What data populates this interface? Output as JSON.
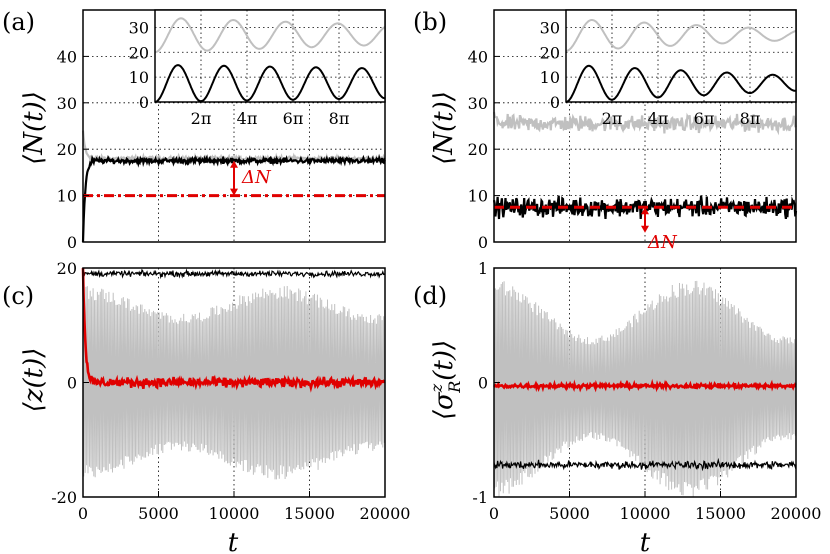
{
  "chart_data": [
    {
      "panel": "(a)",
      "type": "line",
      "ylabel": "⟨N(t)⟩",
      "xlim": [
        0,
        20000
      ],
      "ylim": [
        0,
        50
      ],
      "yticks": [
        "0",
        "10",
        "20",
        "30",
        "40"
      ],
      "grid": true,
      "series": [
        {
          "color": "#c0c0c0",
          "level": 18,
          "start": 24,
          "noise": 0.6
        },
        {
          "color": "#000000",
          "level": 17.5,
          "start": 0,
          "noise": 0.8
        },
        {
          "color": "#e00000",
          "level": 10,
          "style": "dash-dot"
        }
      ],
      "annotation": "ΔN",
      "inset": {
        "xticks": [
          "2π",
          "4π",
          "6π",
          "8π"
        ],
        "yticks": [
          "0",
          "10",
          "20",
          "30"
        ],
        "ylim": [
          0,
          37
        ],
        "series": [
          {
            "color": "#c0c0c0",
            "mean": 27,
            "amp_start": 7,
            "amp_end": 4
          },
          {
            "color": "#000000",
            "mean": 7.5,
            "amp_start": 7.5,
            "amp_end": 6
          }
        ]
      }
    },
    {
      "panel": "(b)",
      "type": "line",
      "ylabel": "⟨N(t)⟩",
      "xlim": [
        0,
        20000
      ],
      "ylim": [
        0,
        50
      ],
      "yticks": [
        "0",
        "10",
        "20",
        "30",
        "40"
      ],
      "grid": true,
      "series": [
        {
          "color": "#c0c0c0",
          "level": 25.5,
          "start": 28,
          "noise": 2.5
        },
        {
          "color": "#000000",
          "level": 7.5,
          "noise": 3.0
        },
        {
          "color": "#e00000",
          "level": 7.5,
          "style": "dashed"
        }
      ],
      "annotation": "ΔN",
      "inset": {
        "xticks": [
          "2π",
          "4π",
          "6π",
          "8π"
        ],
        "yticks": [
          "0",
          "10",
          "20",
          "30"
        ],
        "ylim": [
          0,
          37
        ],
        "series": [
          {
            "color": "#c0c0c0",
            "mean": 27,
            "amp_start": 6.5,
            "amp_end": 2
          },
          {
            "color": "#000000",
            "mean": 7.5,
            "amp_start": 7.5,
            "amp_end": 3
          }
        ]
      }
    },
    {
      "panel": "(c)",
      "type": "line",
      "ylabel": "⟨z(t)⟩",
      "xlabel": "t",
      "xlim": [
        0,
        20000
      ],
      "ylim": [
        -20,
        20
      ],
      "yticks": [
        "-20",
        "0",
        "20"
      ],
      "xticks": [
        "0",
        "5000",
        "10000",
        "15000",
        "20000"
      ],
      "grid": true,
      "series": [
        {
          "color": "#c0c0c0",
          "mean": 0,
          "amp_max": 17,
          "amp_min": 12
        },
        {
          "color": "#000000",
          "level": 19,
          "noise": 0.7
        },
        {
          "color": "#e00000",
          "level": 0,
          "start": 20,
          "noise": 1.2
        }
      ]
    },
    {
      "panel": "(d)",
      "type": "line",
      "ylabel": "⟨σ^z_R(t)⟩",
      "xlabel": "t",
      "xlim": [
        0,
        20000
      ],
      "ylim": [
        -1,
        1
      ],
      "yticks": [
        "-1",
        "0",
        "1"
      ],
      "xticks": [
        "0",
        "5000",
        "10000",
        "15000",
        "20000"
      ],
      "grid": true,
      "series": [
        {
          "color": "#c0c0c0",
          "mean": -0.05,
          "amp_max": 0.95,
          "amp_min": 0.45
        },
        {
          "color": "#000000",
          "level": -0.72,
          "noise": 0.05
        },
        {
          "color": "#e00000",
          "level": -0.03,
          "noise": 0.025
        }
      ]
    }
  ],
  "panels": {
    "a": {
      "label": "(a)",
      "ylabel": "⟨N(t)⟩",
      "annot": "ΔN"
    },
    "b": {
      "label": "(b)",
      "ylabel": "⟨N(t)⟩",
      "annot": "ΔN"
    },
    "c": {
      "label": "(c)",
      "ylabel": "⟨z(t)⟩",
      "xlabel": "t"
    },
    "d": {
      "label": "(d)",
      "ylabel": "⟨σ",
      "ysup": "z",
      "ysub": "R",
      "ytail": "(t)⟩",
      "xlabel": "t"
    }
  }
}
